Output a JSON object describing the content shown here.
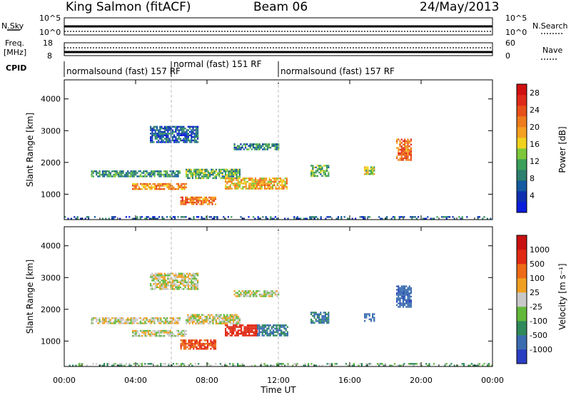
{
  "header": {
    "station": "King Salmon (fitACF)",
    "beam": "Beam 06",
    "date": "24/May/2013"
  },
  "strips": {
    "nsky_label": "N.Sky",
    "nsky_ticks": [
      "10^5",
      "10^0"
    ],
    "nsearch_label": "N.Search",
    "nsearch_ticks": [
      "10^5",
      "10^0"
    ],
    "freq_label_1": "Freq.",
    "freq_label_2": "[MHz]",
    "freq_ticks": [
      "18",
      "8"
    ],
    "nave_label": "Nave",
    "nave_ticks": [
      "60",
      "0"
    ],
    "cpid_label": "CPID"
  },
  "cpid_segments": [
    {
      "start_hour": 0,
      "end_hour": 6,
      "label": "normalsound (fast) 157 RF"
    },
    {
      "start_hour": 6,
      "end_hour": 12,
      "label": "normal (fast) 151 RF"
    },
    {
      "start_hour": 12,
      "end_hour": 24,
      "label": "normalsound (fast) 157 RF"
    }
  ],
  "axes": {
    "ylabel": "Slant Range [km]",
    "xlabel": "Time UT",
    "y_ticks": [
      "1000",
      "2000",
      "3000",
      "4000"
    ],
    "x_ticks": [
      "00:00",
      "04:00",
      "08:00",
      "12:00",
      "16:00",
      "20:00",
      "00:00"
    ]
  },
  "colorbars": {
    "power": {
      "label": "Power [dB]",
      "ticks": [
        "4",
        "8",
        "12",
        "16",
        "20",
        "24",
        "28"
      ],
      "colors": [
        "#0b1cdc",
        "#0f2fb0",
        "#145aa0",
        "#2d7f6e",
        "#3aa05a",
        "#7cc83a",
        "#f0d21e",
        "#f5a020",
        "#ee7c1c",
        "#e8501a",
        "#de2a1a",
        "#d01010"
      ]
    },
    "velocity": {
      "label": "Velocity [m s⁻¹]",
      "ticks": [
        "1000",
        "500",
        "100",
        "25",
        "-25",
        "-100",
        "-500",
        "-1000"
      ],
      "colors": [
        "#2a3ec2",
        "#3a6cb0",
        "#2e8a5a",
        "#62b83a",
        "#c8c8c8",
        "#f0a020",
        "#ee6a16",
        "#e02a14",
        "#c81010"
      ]
    }
  },
  "chart_data": [
    {
      "type": "heatmap",
      "title": "Power",
      "xlabel": "Time UT",
      "ylabel": "Slant Range [km]",
      "xlim": [
        0,
        24
      ],
      "ylim": [
        200,
        4600
      ],
      "colorbar_label": "Power [dB]",
      "colorbar_range": [
        0,
        30
      ],
      "regions": [
        {
          "t0": 1.5,
          "t1": 6.5,
          "r_center": 1650,
          "r_width": 200,
          "value": 10
        },
        {
          "t0": 3.8,
          "t1": 6.8,
          "r_center": 1250,
          "r_width": 200,
          "value": 20
        },
        {
          "t0": 6.5,
          "t1": 8.5,
          "r_center": 800,
          "r_width": 250,
          "value": 22
        },
        {
          "t0": 4.8,
          "t1": 7.5,
          "r_center": 2900,
          "r_width": 500,
          "value": 6
        },
        {
          "t0": 6.8,
          "t1": 9.8,
          "r_center": 1650,
          "r_width": 300,
          "value": 12
        },
        {
          "t0": 9.0,
          "t1": 12.5,
          "r_center": 1350,
          "r_width": 350,
          "value": 18
        },
        {
          "t0": 9.5,
          "t1": 12.0,
          "r_center": 2500,
          "r_width": 200,
          "value": 8
        },
        {
          "t0": 13.8,
          "t1": 14.8,
          "r_center": 1750,
          "r_width": 350,
          "value": 12
        },
        {
          "t0": 16.8,
          "t1": 17.4,
          "r_center": 1750,
          "r_width": 250,
          "value": 14
        },
        {
          "t0": 18.6,
          "t1": 19.4,
          "r_center": 2400,
          "r_width": 700,
          "value": 22
        },
        {
          "t0": 0,
          "t1": 24,
          "r_center": 270,
          "r_width": 80,
          "value": 6
        }
      ]
    },
    {
      "type": "heatmap",
      "title": "Velocity",
      "xlabel": "Time UT",
      "ylabel": "Slant Range [km]",
      "xlim": [
        0,
        24
      ],
      "ylim": [
        200,
        4600
      ],
      "colorbar_label": "Velocity [m s⁻¹]",
      "colorbar_range": [
        -1000,
        1000
      ],
      "regions": [
        {
          "t0": 1.5,
          "t1": 6.5,
          "r_center": 1650,
          "r_width": 200,
          "value": 0
        },
        {
          "t0": 3.8,
          "t1": 6.8,
          "r_center": 1250,
          "r_width": 200,
          "value": 0
        },
        {
          "t0": 6.5,
          "t1": 8.5,
          "r_center": 900,
          "r_width": 300,
          "value": -300
        },
        {
          "t0": 4.8,
          "t1": 7.5,
          "r_center": 2900,
          "r_width": 500,
          "value": 0
        },
        {
          "t0": 6.8,
          "t1": 9.8,
          "r_center": 1700,
          "r_width": 300,
          "value": 0
        },
        {
          "t0": 9.0,
          "t1": 10.8,
          "r_center": 1350,
          "r_width": 350,
          "value": -400
        },
        {
          "t0": 10.8,
          "t1": 12.5,
          "r_center": 1350,
          "r_width": 350,
          "value": 300
        },
        {
          "t0": 9.5,
          "t1": 12.0,
          "r_center": 2500,
          "r_width": 200,
          "value": 0
        },
        {
          "t0": 13.8,
          "t1": 14.8,
          "r_center": 1750,
          "r_width": 350,
          "value": 300
        },
        {
          "t0": 16.8,
          "t1": 17.4,
          "r_center": 1750,
          "r_width": 250,
          "value": 600
        },
        {
          "t0": 18.6,
          "t1": 19.4,
          "r_center": 2400,
          "r_width": 700,
          "value": 700
        },
        {
          "t0": 0,
          "t1": 24,
          "r_center": 270,
          "r_width": 80,
          "value": 50
        }
      ]
    }
  ]
}
